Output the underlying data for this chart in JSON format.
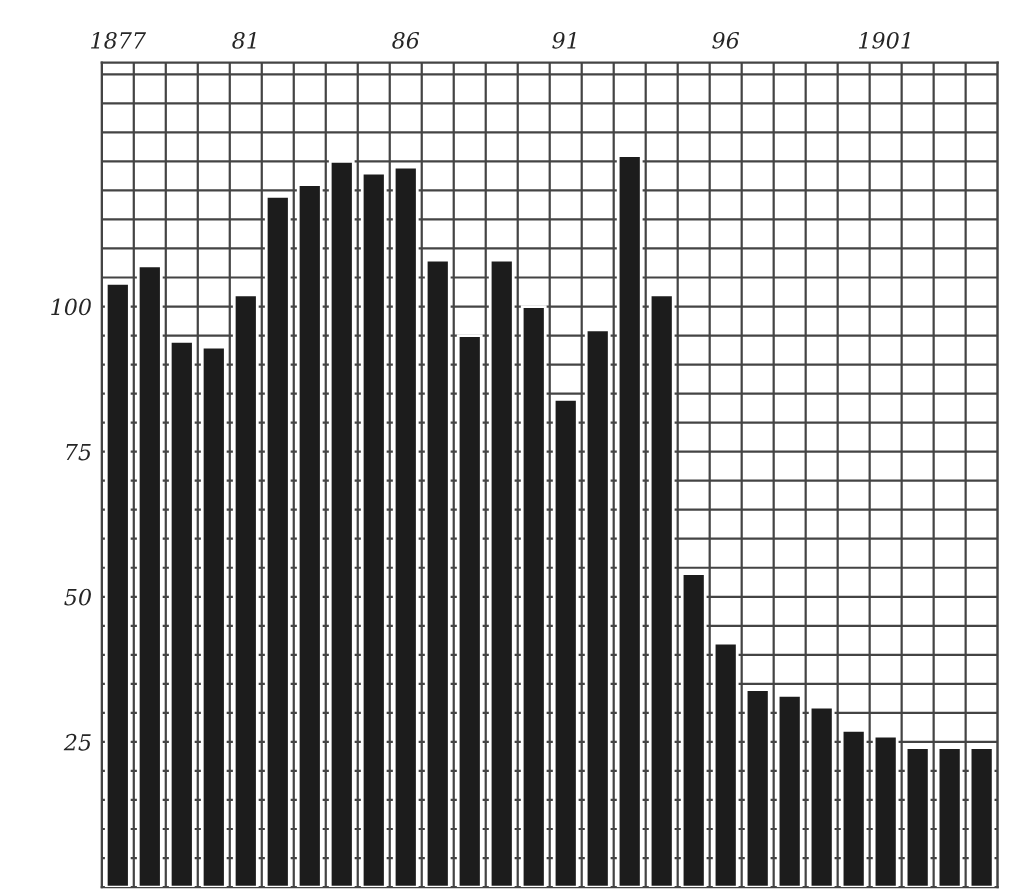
{
  "chart_data": {
    "type": "bar",
    "categories": [
      "1877",
      null,
      null,
      null,
      "81",
      null,
      null,
      null,
      null,
      "86",
      null,
      null,
      null,
      null,
      "91",
      null,
      null,
      null,
      null,
      "96",
      null,
      null,
      null,
      null,
      "1901",
      null,
      null,
      null
    ],
    "values": [
      104,
      107,
      94,
      93,
      102,
      119,
      121,
      125,
      123,
      124,
      108,
      95,
      108,
      100,
      84,
      96,
      126,
      102,
      54,
      42,
      34,
      33,
      31,
      27,
      26,
      24,
      24,
      24
    ],
    "color": "#1c1c1c",
    "ylim": [
      0,
      142
    ],
    "yticks": [
      {
        "value": 5,
        "label": null
      },
      {
        "value": 10,
        "label": null
      },
      {
        "value": 15,
        "label": null
      },
      {
        "value": 20,
        "label": null
      },
      25,
      {
        "value": 30,
        "label": null
      },
      {
        "value": 35,
        "label": null
      },
      {
        "value": 40,
        "label": null
      },
      {
        "value": 45,
        "label": null
      },
      50,
      {
        "value": 55,
        "label": null
      },
      {
        "value": 60,
        "label": null
      },
      {
        "value": 65,
        "label": null
      },
      {
        "value": 70,
        "label": null
      },
      75,
      {
        "value": 80,
        "label": null
      },
      {
        "value": 85,
        "label": null
      },
      {
        "value": 90,
        "label": null
      },
      {
        "value": 95,
        "label": null
      },
      100,
      {
        "value": 105,
        "label": null
      },
      {
        "value": 110,
        "label": null
      },
      {
        "value": 115,
        "label": null
      },
      {
        "value": 120,
        "label": null
      },
      {
        "value": 125,
        "label": null
      },
      {
        "value": 130,
        "label": null
      },
      {
        "value": 135,
        "label": null
      },
      {
        "value": 140,
        "label": null
      }
    ],
    "grid": true
  }
}
